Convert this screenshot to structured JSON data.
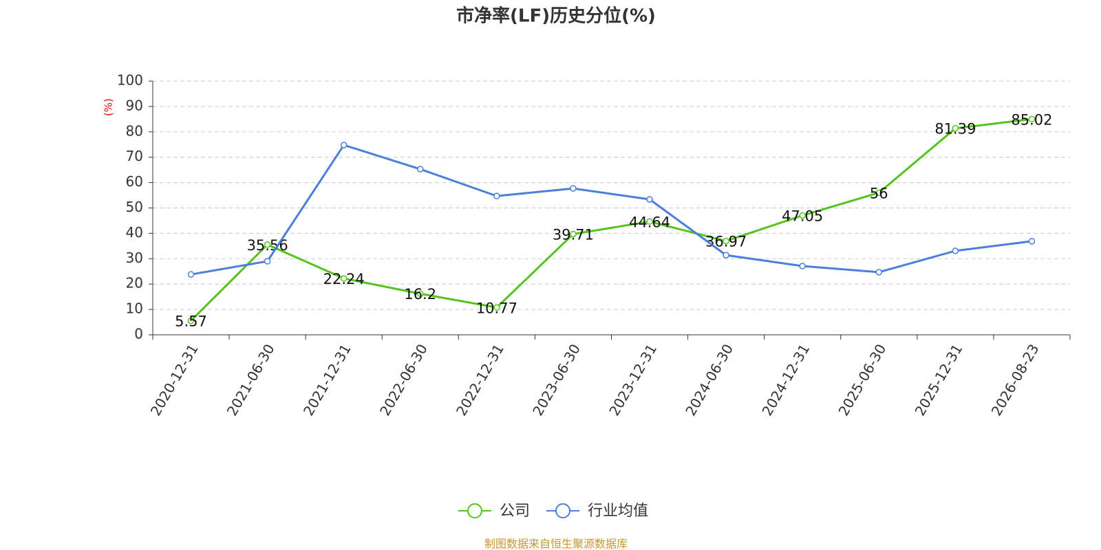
{
  "chart_data": {
    "type": "line",
    "title": "市净率(LF)历史分位(%)",
    "y_label": "(%)",
    "categories": [
      "2020-12-31",
      "2021-06-30",
      "2021-12-31",
      "2022-06-30",
      "2022-12-31",
      "2023-06-30",
      "2023-12-31",
      "2024-06-30",
      "2024-12-31",
      "2025-06-30",
      "2025-12-31",
      "2026-08-23"
    ],
    "series": [
      {
        "name": "公司",
        "color": "#52c41a",
        "values": [
          5.57,
          35.56,
          22.24,
          16.2,
          10.77,
          39.71,
          44.64,
          36.97,
          47.05,
          56,
          81.39,
          85.02
        ],
        "data_labels": true
      },
      {
        "name": "行业均值",
        "color": "#4a7fdb",
        "values": [
          23.8,
          29.0,
          74.8,
          65.3,
          54.7,
          57.7,
          53.4,
          31.4,
          27.1,
          24.7,
          33.1,
          36.9
        ],
        "data_labels": false
      }
    ],
    "ylim": [
      0,
      100
    ],
    "yticks": [
      0,
      10,
      20,
      30,
      40,
      50,
      60,
      70,
      80,
      90,
      100
    ],
    "grid": true,
    "legend_position": "bottom",
    "source": "制图数据来自恒生聚源数据库"
  }
}
